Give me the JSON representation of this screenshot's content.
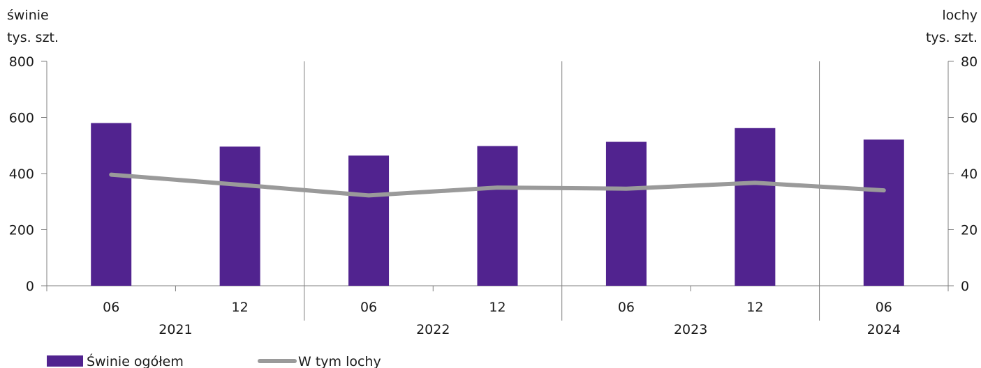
{
  "chart_data": {
    "type": "bar",
    "left_axis": {
      "title_line1": "świnie",
      "title_line2": "tys. szt.",
      "ylim": [
        0,
        800
      ],
      "ticks": [
        0,
        200,
        400,
        600,
        800
      ]
    },
    "right_axis": {
      "title_line1": "lochy",
      "title_line2": "tys. szt.",
      "ylim": [
        0,
        80
      ],
      "ticks": [
        0,
        20,
        40,
        60,
        80
      ]
    },
    "categories": [
      "06",
      "12",
      "06",
      "12",
      "06",
      "12",
      "06"
    ],
    "year_groups": [
      {
        "label": "2021",
        "span": 2
      },
      {
        "label": "2022",
        "span": 2
      },
      {
        "label": "2023",
        "span": 2
      },
      {
        "label": "2024",
        "span": 1
      }
    ],
    "series": [
      {
        "name": "Świnie ogółem",
        "type": "bar",
        "axis": "left",
        "color": "#51238f",
        "values": [
          580,
          496,
          464,
          498,
          513,
          562,
          521
        ]
      },
      {
        "name": "W tym lochy",
        "type": "line",
        "axis": "right",
        "color": "#9a9a9a",
        "values": [
          39.6,
          36.0,
          32.2,
          35.0,
          34.6,
          36.7,
          34.0
        ]
      }
    ],
    "legend_position": "bottom-left",
    "grid": false
  }
}
